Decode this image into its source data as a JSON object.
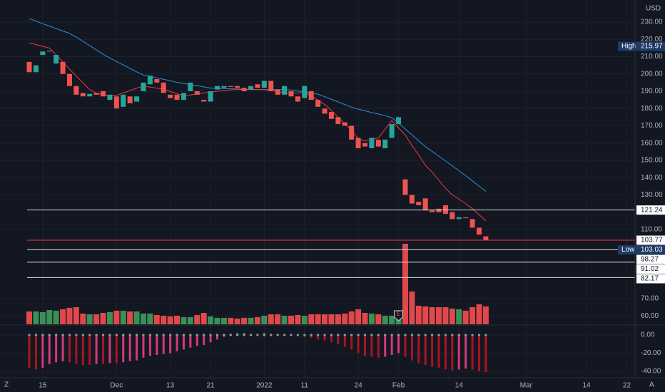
{
  "chart_data": {
    "type": "candlestick",
    "currency": "USD",
    "ui": {
      "left_button": "Z",
      "right_button": "A",
      "earnings_label": "E"
    },
    "categories": [
      null,
      null,
      "15",
      null,
      null,
      null,
      null,
      null,
      null,
      null,
      null,
      null,
      null,
      "Dec",
      null,
      null,
      null,
      null,
      null,
      null,
      null,
      "13",
      null,
      null,
      null,
      null,
      null,
      "21",
      null,
      null,
      null,
      null,
      null,
      null,
      null,
      "2022",
      null,
      null,
      null,
      null,
      null,
      "11",
      null,
      null,
      null,
      null,
      null,
      null,
      null,
      "24",
      null,
      null,
      null,
      null,
      null,
      "Feb",
      null,
      null,
      null,
      null,
      null,
      null,
      null,
      null,
      "14",
      null,
      null,
      null,
      null
    ],
    "future_categories": [
      null,
      null,
      null,
      null,
      null,
      "Mar",
      null,
      null,
      null,
      null,
      null,
      null,
      null,
      null,
      "14",
      null,
      null,
      null,
      null,
      null,
      "22",
      null
    ],
    "open": [
      207,
      201,
      211,
      213,
      206,
      207,
      200,
      193,
      189,
      187,
      189,
      190,
      185,
      187,
      181,
      187,
      184,
      190,
      194,
      197,
      195,
      188,
      188,
      185,
      190,
      190,
      185,
      184,
      191,
      192,
      193,
      193,
      192,
      191,
      194,
      192,
      196,
      191,
      188,
      190,
      187,
      186,
      190,
      185,
      180,
      178,
      175,
      172,
      170,
      163,
      160,
      157,
      162,
      157,
      163,
      171,
      139,
      130,
      126,
      128,
      121,
      122,
      124,
      120,
      116,
      117,
      116,
      111,
      106
    ],
    "high": {
      "label": "High",
      "value": 215.97
    },
    "low": {
      "label": "Low",
      "value": 103.03
    },
    "close": [
      201,
      205,
      213,
      213.5,
      211,
      200,
      193,
      188,
      187,
      188.5,
      188,
      187,
      188,
      180,
      188,
      183,
      187,
      195,
      199,
      195,
      189,
      186,
      185,
      189,
      195,
      188,
      184,
      190,
      193,
      193,
      192.5,
      192,
      190,
      193,
      192,
      196,
      190,
      188,
      193,
      187,
      184,
      193,
      185,
      181,
      177,
      174,
      171,
      170,
      162,
      157,
      158,
      163,
      158,
      162,
      171,
      175,
      130,
      125,
      124,
      121,
      120,
      120,
      119,
      116,
      117,
      116.5,
      111,
      107,
      103.77
    ],
    "colors": {
      "up": "#26a69a",
      "down": "#ef5350"
    },
    "moving_averages": [
      {
        "color": "#2f8fd8",
        "values": [
          232,
          230.6,
          229.1,
          227.7,
          226.3,
          224.9,
          223.4,
          221.3,
          218.9,
          216.4,
          213.9,
          211.4,
          209.2,
          207.2,
          205.2,
          203.2,
          201.2,
          199.4,
          198.6,
          197.7,
          196.9,
          196,
          195.1,
          194.5,
          193.8,
          193.2,
          192.5,
          191.8,
          191.6,
          191.5,
          191.4,
          191.3,
          191.1,
          191,
          191,
          191,
          191,
          191,
          191,
          190.7,
          190.1,
          189.6,
          189,
          188.3,
          186.8,
          185.3,
          183.8,
          182.3,
          180.8,
          179.6,
          178.7,
          177.7,
          176.8,
          175.9,
          174.7,
          171.5,
          168.1,
          164.7,
          161.3,
          157.9,
          155.2,
          152.4,
          149.6,
          146.8,
          144,
          141.1,
          138.1,
          135.1,
          132
        ]
      },
      {
        "color": "#f23645",
        "values": [
          218,
          217,
          216,
          215,
          211.2,
          207,
          202.8,
          198.8,
          194.9,
          191,
          188.7,
          188,
          187.4,
          187.6,
          189,
          190.4,
          191.8,
          193,
          192.4,
          191.8,
          191.1,
          189.8,
          188.6,
          187.4,
          187.8,
          188.4,
          189,
          189.5,
          190,
          190.4,
          190.8,
          191,
          191,
          191,
          191,
          191,
          190.4,
          189.8,
          189.1,
          189,
          189,
          189,
          187.4,
          184.9,
          182.3,
          178.9,
          175,
          171.1,
          167.4,
          162.5,
          161.2,
          162.1,
          163,
          168,
          173,
          168.8,
          164.6,
          158.6,
          153,
          147.1,
          143.2,
          138.5,
          133.8,
          130,
          127.5,
          125,
          122,
          118.5,
          115
        ]
      }
    ],
    "volume": {
      "up_color": "#3b8f58",
      "down_color": "#e0484a",
      "values": [
        15.3,
        15.3,
        14.5,
        17,
        16.2,
        17.9,
        19.6,
        20.4,
        12.8,
        11.9,
        11.9,
        13.6,
        14.5,
        16.2,
        16.2,
        15.3,
        15.3,
        12.8,
        12.8,
        11.1,
        10.2,
        9.4,
        10.2,
        8.5,
        8.5,
        11.1,
        13.6,
        9.4,
        7.7,
        7.7,
        7.7,
        6.8,
        7.7,
        7.7,
        8.5,
        10.2,
        11.9,
        11.9,
        10.2,
        10.2,
        11.1,
        10.2,
        11.9,
        11.9,
        11.9,
        11.9,
        11.9,
        12.8,
        15.3,
        17.9,
        13.6,
        12.8,
        11.9,
        10.2,
        10.2,
        12.8,
        96,
        39.1,
        22.1,
        21.3,
        20.4,
        20.4,
        20.4,
        18.7,
        17.9,
        16.2,
        20.4,
        23.8,
        21.3
      ]
    },
    "ylim": [
      55.1,
      242.8
    ],
    "yticks": [
      {
        "value": 230,
        "label": "230.00"
      },
      {
        "value": 220,
        "label": "220.00"
      },
      {
        "value": 210,
        "label": "210.00"
      },
      {
        "value": 200,
        "label": "200.00"
      },
      {
        "value": 190,
        "label": "190.00"
      },
      {
        "value": 180,
        "label": "180.00"
      },
      {
        "value": 170,
        "label": "170.00"
      },
      {
        "value": 160,
        "label": "160.00"
      },
      {
        "value": 150,
        "label": "150.00"
      },
      {
        "value": 140,
        "label": "140.00"
      },
      {
        "value": 130,
        "label": "130.00"
      },
      {
        "value": 110,
        "label": "110.00"
      },
      {
        "value": 70,
        "label": "70.00"
      },
      {
        "value": 60,
        "label": "60.00"
      }
    ],
    "price_lines": {
      "color": "#d1d4dc",
      "values": [
        121.24,
        98.27,
        91.02,
        82.17
      ]
    },
    "last_price": {
      "value": 103.77,
      "color": "#f23645"
    },
    "indicator": {
      "ylim": [
        -47.1,
        10.2
      ],
      "yticks": [
        {
          "value": 0,
          "label": "0.00"
        },
        {
          "value": -20,
          "label": "-20.00"
        },
        {
          "value": -40,
          "label": "-40.00"
        }
      ],
      "colors": {
        "pos_grow": "#26a69a",
        "pos_shrink": "#8fbfb6",
        "neg_grow": "#a8151f",
        "neg_shrink": "#d23a7a"
      },
      "values": [
        -36,
        -38,
        -36,
        -32,
        -30,
        -29,
        -30,
        -32,
        -33,
        -33,
        -32,
        -32,
        -31,
        -31,
        -30,
        -29,
        -28,
        -25,
        -23,
        -22,
        -21,
        -20,
        -18,
        -16,
        -14,
        -12,
        -11,
        -8,
        -5,
        -2,
        1,
        2,
        2,
        1,
        1,
        2,
        1,
        1,
        1,
        0.5,
        -1,
        -2,
        -3,
        -5,
        -6,
        -8,
        -10,
        -13,
        -16,
        -20,
        -23,
        -24,
        -25,
        -24,
        -22,
        -20,
        -24,
        -28,
        -31,
        -33,
        -35,
        -36,
        -38,
        -39,
        -38,
        -37,
        -38,
        -40,
        -41
      ]
    }
  }
}
